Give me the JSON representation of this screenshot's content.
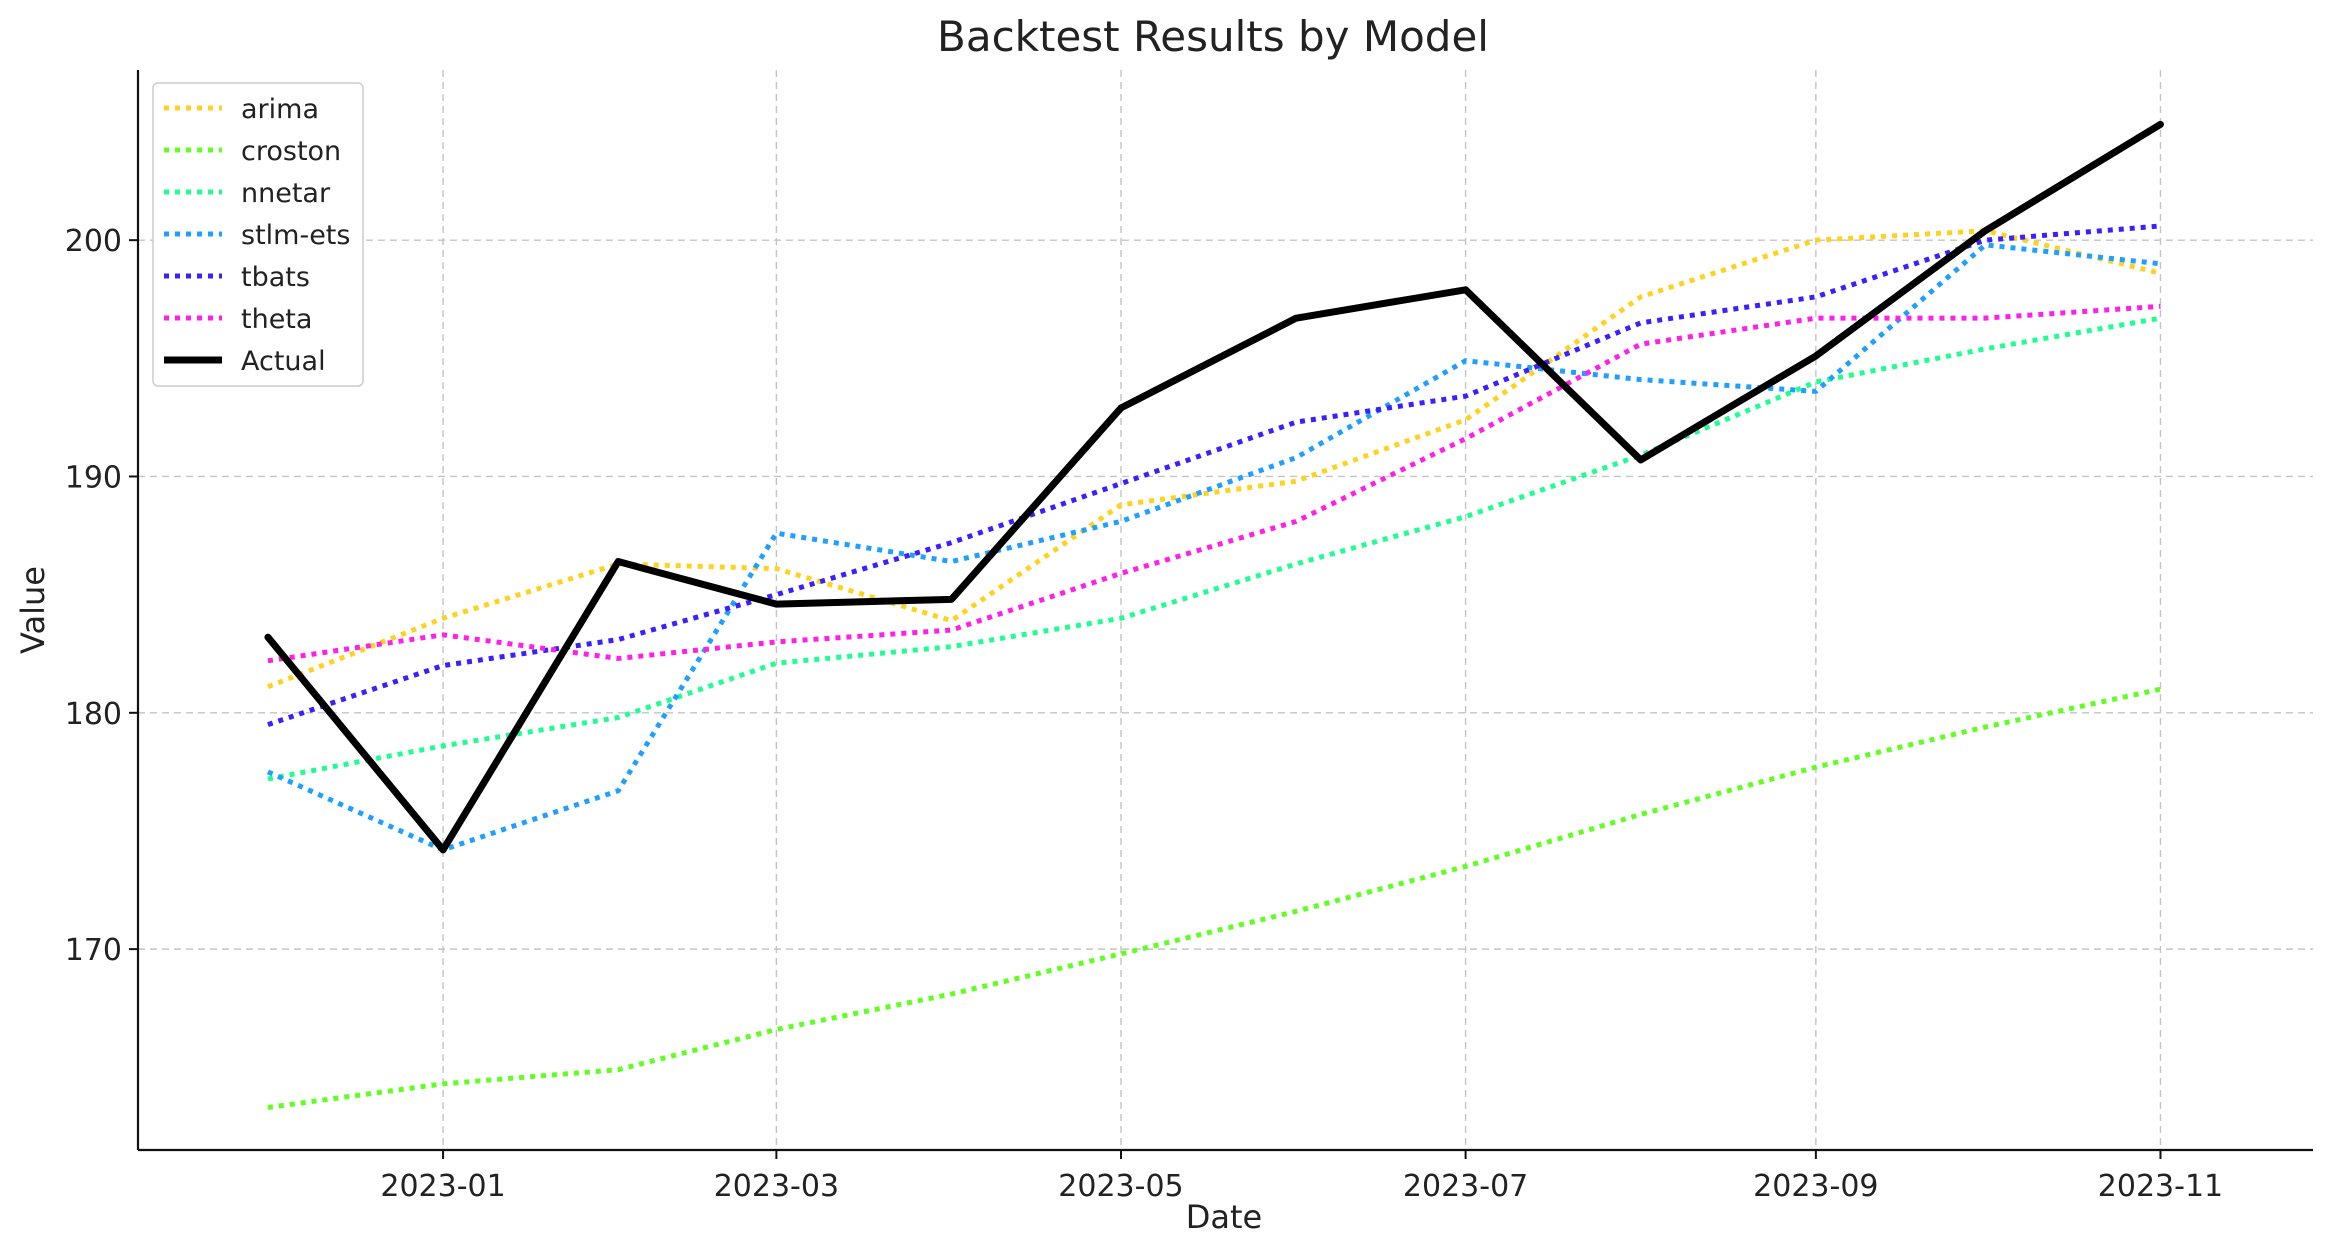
{
  "chart_data": {
    "type": "line",
    "title": "Backtest Results by Model",
    "xlabel": "Date",
    "ylabel": "Value",
    "x": [
      "2022-12",
      "2023-01",
      "2023-02",
      "2023-03",
      "2023-04",
      "2023-05",
      "2023-06",
      "2023-07",
      "2023-08",
      "2023-09",
      "2023-10",
      "2023-11"
    ],
    "xticks": [
      "2023-01",
      "2023-03",
      "2023-05",
      "2023-07",
      "2023-09",
      "2023-11"
    ],
    "yticks": [
      170,
      180,
      190,
      200
    ],
    "xlim": [
      "2022-11-08",
      "2023-11-28"
    ],
    "ylim": [
      161.5,
      207.2
    ],
    "grid": true,
    "legend_position": "top-left",
    "series": [
      {
        "name": "arima",
        "color": "#FFD21F",
        "style": "dotted",
        "values": [
          181.1,
          184.0,
          186.3,
          186.1,
          183.9,
          188.8,
          189.8,
          192.4,
          197.6,
          200.0,
          200.4,
          198.6
        ]
      },
      {
        "name": "croston",
        "color": "#5FFF1F",
        "style": "dotted",
        "values": [
          163.3,
          164.3,
          164.9,
          166.6,
          168.1,
          169.8,
          171.6,
          173.5,
          175.7,
          177.7,
          179.4,
          181.0
        ]
      },
      {
        "name": "nnetar",
        "color": "#1FFF8F",
        "style": "dotted",
        "values": [
          177.2,
          178.6,
          179.8,
          182.1,
          182.8,
          184.0,
          186.3,
          188.3,
          190.9,
          194.0,
          195.4,
          196.7
        ]
      },
      {
        "name": "stlm-ets",
        "color": "#1F9FFF",
        "style": "dotted",
        "values": [
          177.5,
          174.2,
          176.7,
          187.6,
          186.4,
          188.1,
          190.8,
          194.9,
          194.1,
          193.6,
          199.8,
          199.0
        ]
      },
      {
        "name": "tbats",
        "color": "#3A1FFF",
        "style": "dotted",
        "values": [
          179.5,
          182.0,
          183.1,
          185.0,
          187.2,
          189.7,
          192.3,
          193.4,
          196.5,
          197.6,
          200.0,
          200.6
        ]
      },
      {
        "name": "theta",
        "color": "#FF1FE8",
        "style": "dotted",
        "values": [
          182.2,
          183.3,
          182.3,
          183.0,
          183.5,
          185.9,
          188.1,
          191.6,
          195.6,
          196.7,
          196.7,
          197.2
        ]
      },
      {
        "name": "Actual",
        "color": "#000000",
        "style": "solid",
        "values": [
          183.2,
          174.2,
          186.4,
          184.6,
          184.8,
          192.9,
          196.7,
          197.9,
          190.7,
          195.1,
          200.4,
          204.9
        ]
      }
    ]
  }
}
